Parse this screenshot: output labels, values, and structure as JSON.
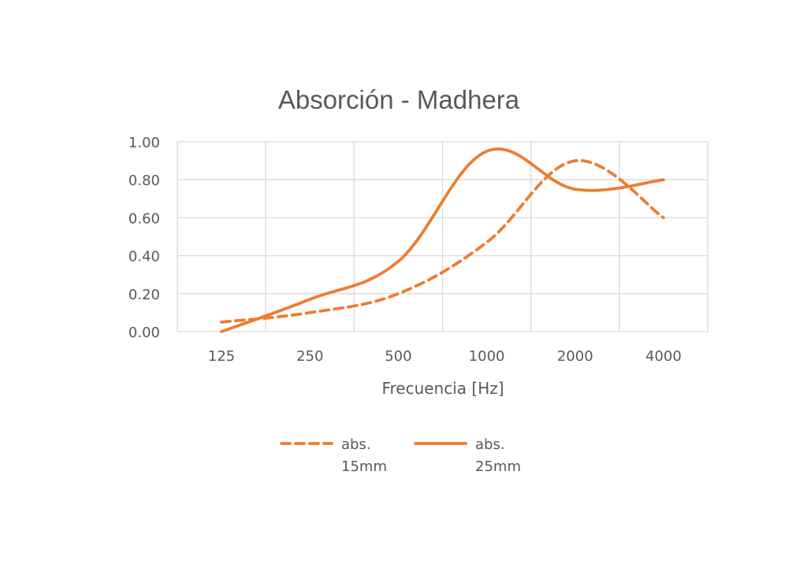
{
  "chart_data": {
    "type": "line",
    "title": "Absorción - Madhera",
    "xlabel": "Frecuencia [Hz]",
    "ylabel": "",
    "categories": [
      "125",
      "250",
      "500",
      "1000",
      "2000",
      "4000"
    ],
    "ylim": [
      0,
      1
    ],
    "yticks": [
      "0.00",
      "0.20",
      "0.40",
      "0.60",
      "0.80",
      "1.00"
    ],
    "grid": true,
    "legend_position": "bottom",
    "series": [
      {
        "name_lines": [
          "abs.",
          "15mm"
        ],
        "style": "dashed",
        "color": "#ED7D31",
        "values": [
          0.05,
          0.1,
          0.2,
          0.47,
          0.9,
          0.6
        ]
      },
      {
        "name_lines": [
          "abs.",
          "25mm"
        ],
        "style": "solid",
        "color": "#ED7D31",
        "values": [
          0.0,
          0.17,
          0.37,
          0.95,
          0.75,
          0.8
        ]
      }
    ]
  }
}
